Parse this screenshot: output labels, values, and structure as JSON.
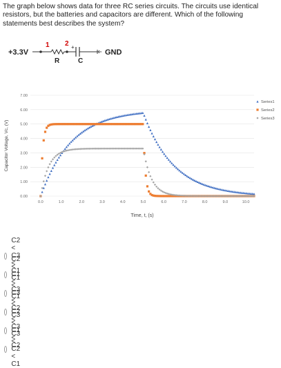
{
  "question": {
    "text": "The graph below shows data for three RC series circuits.  The circuits use identical resistors, but the batteries and capacitors are different.  Which of the following statements best describes the system?"
  },
  "circuit": {
    "source_label": "+3.3V",
    "node1_label": "1",
    "node2_label": "2",
    "resistor_label": "R",
    "capacitor_label": "C",
    "capacitor_plus": "+",
    "ground_label": "GND"
  },
  "chart_data": {
    "type": "scatter",
    "xlabel": "Time, t, (s)",
    "ylabel": "Capacitor Voltage, Vc, (V)",
    "xlim": [
      -0.5,
      10.4
    ],
    "ylim": [
      0,
      7
    ],
    "x_ticks": [
      "0.0",
      "1.0",
      "2.0",
      "3.0",
      "4.0",
      "5.0",
      "6.0",
      "7.0",
      "8.0",
      "9.0",
      "10.0"
    ],
    "y_ticks": [
      "0.00",
      "1.00",
      "2.00",
      "3.00",
      "4.00",
      "5.00",
      "6.00",
      "7.00"
    ],
    "grid": "horizontal",
    "legend_position": "right",
    "series": [
      {
        "name": "Series1",
        "color": "#4472c4",
        "marker": "triangle",
        "model": "charge-discharge",
        "V_max": 6.0,
        "tau": 1.5,
        "t_switch": 5.0,
        "points": 140
      },
      {
        "name": "Series2",
        "color": "#ed7d31",
        "marker": "square",
        "model": "charge-discharge",
        "V_max": 5.0,
        "tau": 0.1,
        "t_switch": 5.0,
        "points": 140
      },
      {
        "name": "Series3",
        "color": "#a5a5a5",
        "marker": "diamond",
        "model": "charge-discharge",
        "V_max": 3.3,
        "tau": 0.4,
        "t_switch": 5.0,
        "points": 140
      }
    ]
  },
  "options": [
    {
      "label": "C2 < C3 < C1"
    },
    {
      "label": "C2 < C1 < C3"
    },
    {
      "label": "C1 < C3 < C2"
    },
    {
      "label": "C1 < C2 < C3"
    },
    {
      "label": "C3 < C1 < C2"
    },
    {
      "label": "C3 < C2 < C1"
    }
  ]
}
